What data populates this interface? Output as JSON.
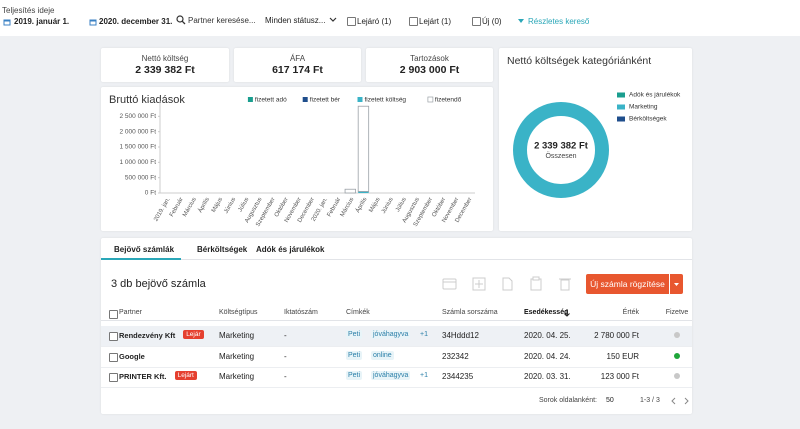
{
  "filters": {
    "date_label": "Teljesítés ideje",
    "date_from": "2019. január 1.",
    "date_to": "2020. december 31.",
    "search_placeholder": "Partner keresése...",
    "status": "Minden státusz...",
    "checkboxes": [
      "Lejáró (1)",
      "Lejárt (1)",
      "Új (0)"
    ],
    "advanced": "Részletes kereső"
  },
  "summary": [
    {
      "label": "Nettó költség",
      "value": "2 339 382 Ft"
    },
    {
      "label": "ÁFA",
      "value": "617 174 Ft"
    },
    {
      "label": "Tartozások",
      "value": "2 903 000 Ft"
    }
  ],
  "chart_data": [
    {
      "type": "bar",
      "title": "Bruttó kiadások",
      "stacked": true,
      "categories": [
        "2019. jan.",
        "Február",
        "Március",
        "Április",
        "Május",
        "Június",
        "Július",
        "Augusztus",
        "Szeptember",
        "Október",
        "November",
        "December",
        "2020. jan.",
        "Február",
        "Március",
        "Április",
        "Május",
        "Június",
        "Július",
        "Augusztus",
        "Szeptember",
        "Október",
        "November",
        "December"
      ],
      "series": [
        {
          "name": "fizetett adó",
          "color": "#1a9e8f",
          "values": [
            0,
            0,
            0,
            0,
            0,
            0,
            0,
            0,
            0,
            0,
            0,
            0,
            0,
            0,
            0,
            0,
            0,
            0,
            0,
            0,
            0,
            0,
            0,
            0
          ]
        },
        {
          "name": "fizetett bér",
          "color": "#1f4e8c",
          "values": [
            0,
            0,
            0,
            0,
            0,
            0,
            0,
            0,
            0,
            0,
            0,
            0,
            0,
            0,
            0,
            0,
            0,
            0,
            0,
            0,
            0,
            0,
            0,
            0
          ]
        },
        {
          "name": "fizetett költség",
          "color": "#3ab3c7",
          "values": [
            0,
            0,
            0,
            0,
            0,
            0,
            0,
            0,
            0,
            0,
            0,
            0,
            0,
            0,
            0,
            50000,
            0,
            0,
            0,
            0,
            0,
            0,
            0,
            0
          ]
        },
        {
          "name": "fizetendő",
          "color": "#ffffff",
          "outline": "#9aa0a6",
          "values": [
            0,
            0,
            0,
            0,
            0,
            0,
            0,
            0,
            0,
            0,
            0,
            0,
            0,
            0,
            123000,
            2780000,
            0,
            0,
            0,
            0,
            0,
            0,
            0,
            0
          ]
        }
      ],
      "ylim": [
        0,
        3000000
      ],
      "yticks": [
        {
          "value": 0,
          "label": "0 Ft"
        },
        {
          "value": 500000,
          "label": "500 000 Ft"
        },
        {
          "value": 1000000,
          "label": "1 000 000 Ft"
        },
        {
          "value": 1500000,
          "label": "1 500 000 Ft"
        },
        {
          "value": 2000000,
          "label": "2 000 000 Ft"
        },
        {
          "value": 2500000,
          "label": "2 500 000 Ft"
        }
      ],
      "grid": false,
      "legend": "top-right"
    },
    {
      "type": "donut",
      "title": "Nettó költségek kategóriánként",
      "categories": [
        "Adók és járulékok",
        "Marketing",
        "Bérköltségek"
      ],
      "colors": [
        "#1a9e8f",
        "#3ab3c7",
        "#1f4e8c"
      ],
      "values": [
        0,
        2339382,
        0
      ],
      "total_label": "2 339 382 Ft",
      "center_caption": "Összesen",
      "legend": "right"
    }
  ],
  "tabs": [
    "Bejövő számlák",
    "Bérköltségek",
    "Adók és járulékok"
  ],
  "list_title": "3 db bejövő számla",
  "new_button": "Új számla rögzítése",
  "table": {
    "columns": [
      "Partner",
      "Költségtípus",
      "Iktatószám",
      "Címkék",
      "Számla sorszáma",
      "Esedékesség",
      "Érték",
      "Fizetve"
    ],
    "rows": [
      {
        "partner": "Rendezvény Kft",
        "badge": "Lejár",
        "type": "Marketing",
        "file_no": "-",
        "tags": [
          "Peti",
          "jóváhagyva"
        ],
        "more": "+1",
        "number": "34Hddd12",
        "due": "2020. 04. 25.",
        "amount": "2 780 000 Ft",
        "paid": false
      },
      {
        "partner": "Google",
        "type": "Marketing",
        "file_no": "-",
        "tags": [
          "Peti",
          "online"
        ],
        "number": "232342",
        "due": "2020. 04. 24.",
        "amount": "150 EUR",
        "paid": true
      },
      {
        "partner": "PRINTER Kft.",
        "badge": "Lejárt",
        "type": "Marketing",
        "file_no": "-",
        "tags": [
          "Peti",
          "jóváhagyva"
        ],
        "more": "+1",
        "number": "2344235",
        "due": "2020. 03. 31.",
        "amount": "123 000 Ft",
        "paid": false
      }
    ]
  },
  "pagination": {
    "rows_label": "Sorok oldalanként:",
    "page_size": "50",
    "range": "1-3 / 3"
  }
}
